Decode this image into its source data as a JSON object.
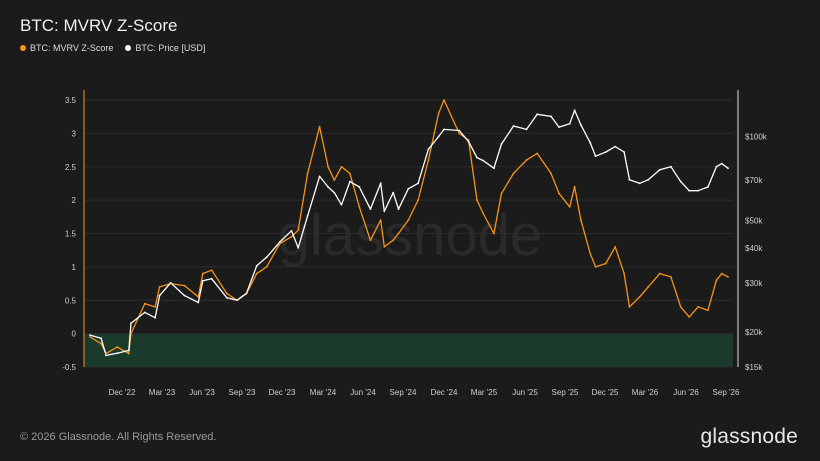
{
  "colors": {
    "background": "#1b1b1b",
    "zscore": "#f7931a",
    "price": "#ffffff",
    "grid": "#2c2c2c",
    "green_band": "#1a3a2c"
  },
  "footer": {
    "copyright": "© 2026 Glassnode. All Rights Reserved.",
    "logo": "glassnode"
  },
  "watermark": "glassnode",
  "chart_data": {
    "type": "line",
    "title": "BTC: MVRV Z-Score",
    "legend_position": "top-left",
    "grid": true,
    "x_ticks": [
      "Dec '22",
      "Mar '23",
      "Jun '23",
      "Sep '23",
      "Dec '23",
      "Mar '24",
      "Jun '24",
      "Sep '24",
      "Dec '24",
      "Mar '25",
      "Jun '25",
      "Sep '25",
      "Dec '25",
      "Mar '26",
      "Jun '26",
      "Sep '26"
    ],
    "y_left_ticks": [
      "3.5",
      "3",
      "2.5",
      "2",
      "1.5",
      "1",
      "0.5",
      "0",
      "-0.5"
    ],
    "y_left_range": [
      -0.5,
      3.5
    ],
    "y_right_ticks": [
      "$100k",
      "$70k",
      "$50k",
      "$40k",
      "$30k",
      "$20k",
      "$15k"
    ],
    "y_right_scale": "log",
    "y_right_range": [
      15000,
      135000
    ],
    "x": [
      "2022-10-15",
      "2022-11-09",
      "2022-11-20",
      "2022-12-15",
      "2023-01-10",
      "2023-01-15",
      "2023-02-15",
      "2023-03-10",
      "2023-03-20",
      "2023-04-14",
      "2023-05-15",
      "2023-06-15",
      "2023-06-25",
      "2023-07-15",
      "2023-08-18",
      "2023-09-10",
      "2023-10-01",
      "2023-10-24",
      "2023-11-15",
      "2023-12-15",
      "2024-01-10",
      "2024-01-25",
      "2024-02-15",
      "2024-03-13",
      "2024-04-01",
      "2024-04-15",
      "2024-05-01",
      "2024-05-20",
      "2024-06-10",
      "2024-07-05",
      "2024-07-28",
      "2024-08-05",
      "2024-08-25",
      "2024-09-06",
      "2024-09-28",
      "2024-10-20",
      "2024-11-12",
      "2024-12-05",
      "2024-12-17",
      "2025-01-20",
      "2025-02-10",
      "2025-03-01",
      "2025-03-15",
      "2025-04-08",
      "2025-04-25",
      "2025-05-22",
      "2025-06-20",
      "2025-07-14",
      "2025-08-14",
      "2025-09-01",
      "2025-09-25",
      "2025-10-06",
      "2025-10-20",
      "2025-11-10",
      "2025-11-22",
      "2025-12-15",
      "2026-01-05",
      "2026-01-25",
      "2026-02-06",
      "2026-03-01",
      "2026-03-20",
      "2026-04-15",
      "2026-05-10",
      "2026-06-01",
      "2026-06-20",
      "2026-07-10",
      "2026-08-01",
      "2026-08-20",
      "2026-09-01",
      "2026-09-15"
    ],
    "series": [
      {
        "name": "BTC: MVRV Z-Score",
        "color": "#f7931a",
        "axis": "left",
        "values": [
          -0.05,
          -0.15,
          -0.3,
          -0.2,
          -0.3,
          0.0,
          0.45,
          0.4,
          0.7,
          0.75,
          0.72,
          0.55,
          0.9,
          0.95,
          0.6,
          0.5,
          0.6,
          0.9,
          1.0,
          1.35,
          1.45,
          1.55,
          2.4,
          3.1,
          2.5,
          2.3,
          2.5,
          2.4,
          1.9,
          1.4,
          1.7,
          1.3,
          1.4,
          1.5,
          1.7,
          2.0,
          2.6,
          3.3,
          3.5,
          3.0,
          2.9,
          2.0,
          1.8,
          1.5,
          2.1,
          2.4,
          2.6,
          2.7,
          2.4,
          2.1,
          1.9,
          2.2,
          1.7,
          1.2,
          1.0,
          1.05,
          1.3,
          0.9,
          0.4,
          0.55,
          0.7,
          0.9,
          0.85,
          0.4,
          0.25,
          0.4,
          0.35,
          0.8,
          0.9,
          0.85
        ]
      },
      {
        "name": "BTC: Price [USD]",
        "color": "#ffffff",
        "axis": "right",
        "values": [
          19500,
          19000,
          16500,
          16800,
          17200,
          21500,
          23500,
          22500,
          27000,
          30000,
          27000,
          25500,
          30500,
          31000,
          26500,
          26000,
          27500,
          34500,
          37000,
          42000,
          46000,
          40000,
          52000,
          72000,
          66000,
          63000,
          57000,
          69000,
          66000,
          55000,
          68000,
          54000,
          63000,
          55000,
          65000,
          68000,
          90000,
          100000,
          106000,
          105000,
          96000,
          84000,
          82000,
          77000,
          94000,
          109000,
          106000,
          120000,
          118000,
          108000,
          111000,
          124000,
          110000,
          95000,
          85000,
          88000,
          92000,
          88000,
          70000,
          68000,
          70000,
          76000,
          78000,
          69000,
          64000,
          64000,
          66000,
          78000,
          80000,
          77000
        ]
      }
    ]
  }
}
